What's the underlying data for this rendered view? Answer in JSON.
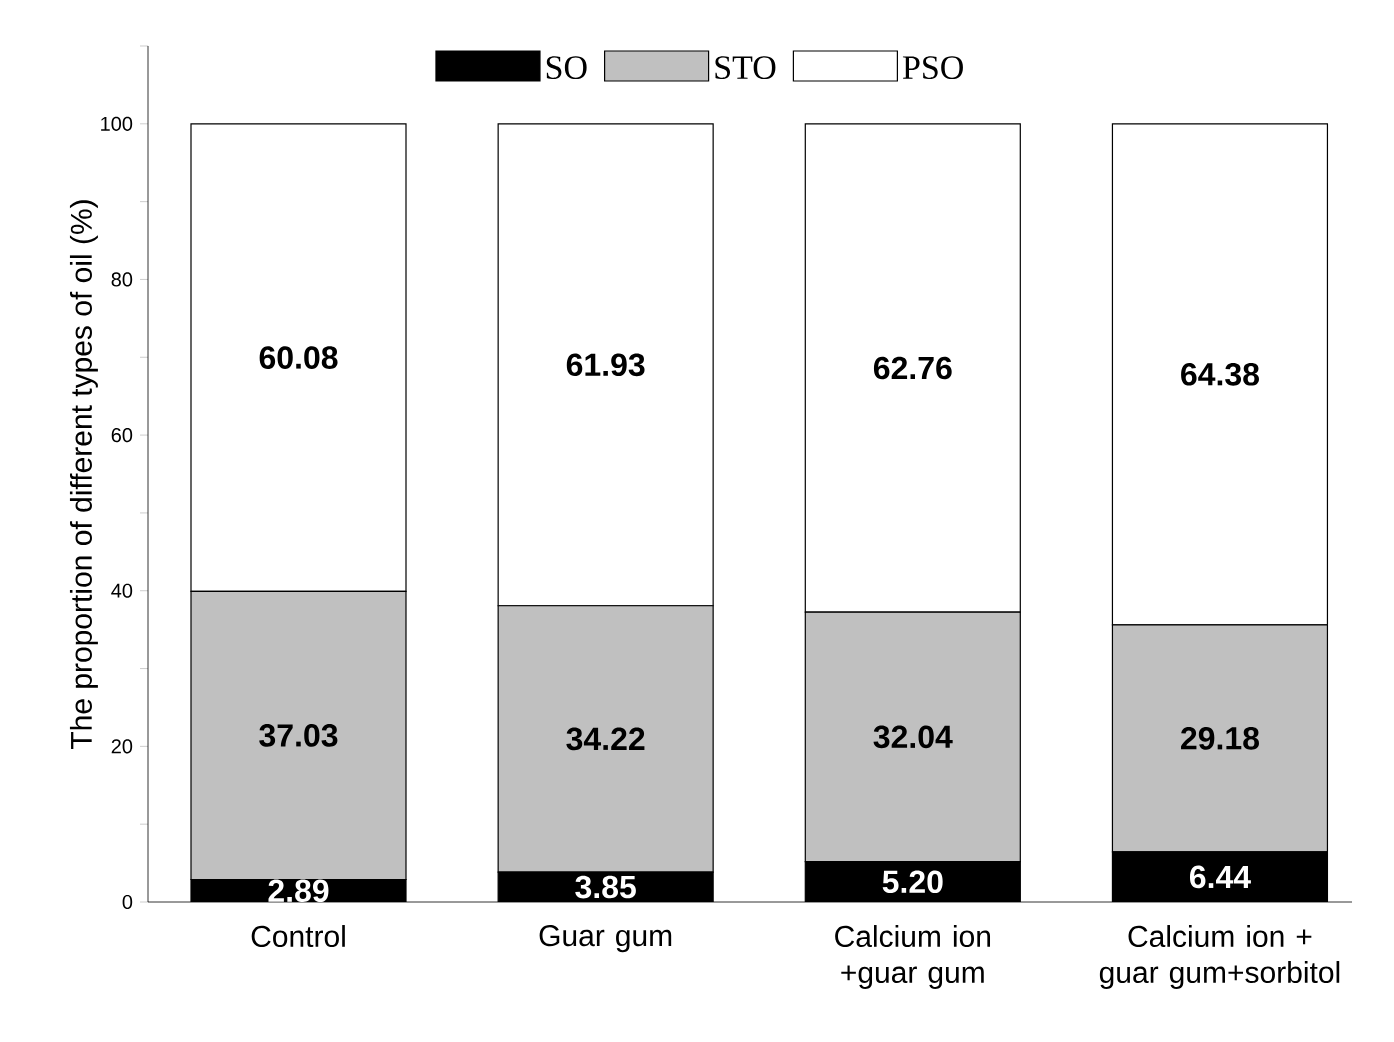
{
  "chart_data": {
    "type": "bar",
    "stacked": true,
    "ylabel": "The proportion of different types of oil (%)",
    "categories": [
      "Control",
      "Guar gum",
      "Calcium ion +guar gum",
      "Calcium ion + guar gum+sorbitol"
    ],
    "series": [
      {
        "name": "SO",
        "color": "#000000",
        "values": [
          2.89,
          3.85,
          5.2,
          6.44
        ],
        "value_labels": [
          "2.89",
          "3.85",
          "5.20",
          "6.44"
        ]
      },
      {
        "name": "STO",
        "color": "#c0c0c0",
        "values": [
          37.03,
          34.22,
          32.04,
          29.18
        ],
        "value_labels": [
          "37.03",
          "34.22",
          "32.04",
          "29.18"
        ]
      },
      {
        "name": "PSO",
        "color": "#ffffff",
        "values": [
          60.08,
          61.93,
          62.76,
          64.38
        ],
        "value_labels": [
          "60.08",
          "61.93",
          "62.76",
          "64.38"
        ]
      }
    ],
    "ylim": [
      0,
      110
    ],
    "yticks": [
      0,
      {
        "value": 10,
        "label": null
      },
      20,
      {
        "value": 30,
        "label": null
      },
      40,
      {
        "value": 50,
        "label": null
      },
      60,
      {
        "value": 70,
        "label": null
      },
      80,
      {
        "value": 90,
        "label": null
      },
      100,
      {
        "value": 110,
        "label": null
      }
    ],
    "legend": "top",
    "grid": false
  }
}
